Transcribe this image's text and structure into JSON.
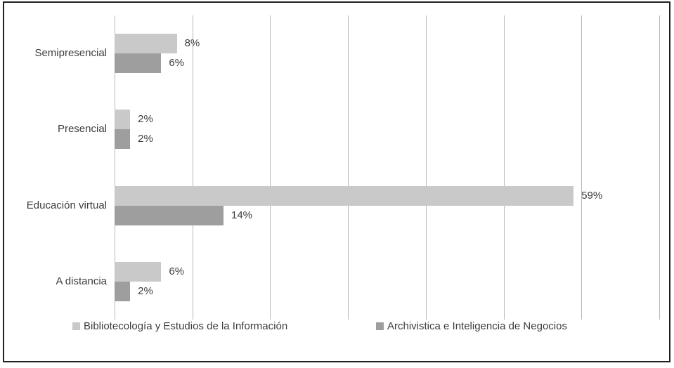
{
  "chart_data": {
    "type": "bar",
    "orientation": "horizontal",
    "title": "",
    "xlabel": "",
    "ylabel": "",
    "categories": [
      "Semipresencial",
      "Presencial",
      "Educación virtual",
      "A distancia"
    ],
    "series": [
      {
        "name": "Bibliotecología y Estudios de la Información",
        "color": "#c9c9c9",
        "values": [
          8,
          2,
          59,
          6
        ],
        "labels": [
          "8%",
          "2%",
          "59%",
          "6%"
        ]
      },
      {
        "name": "Archivistica e Inteligencia de Negocios",
        "color": "#9e9e9e",
        "values": [
          6,
          2,
          14,
          2
        ],
        "labels": [
          "6%",
          "2%",
          "14%",
          "2%"
        ]
      }
    ],
    "xlim": [
      0,
      70
    ],
    "grid_step": 10,
    "grid": true,
    "gridline_color": "#b9b9b9",
    "legend_position": "bottom",
    "text_color": "#3d3d3d",
    "frame_color": "#221f1c"
  }
}
